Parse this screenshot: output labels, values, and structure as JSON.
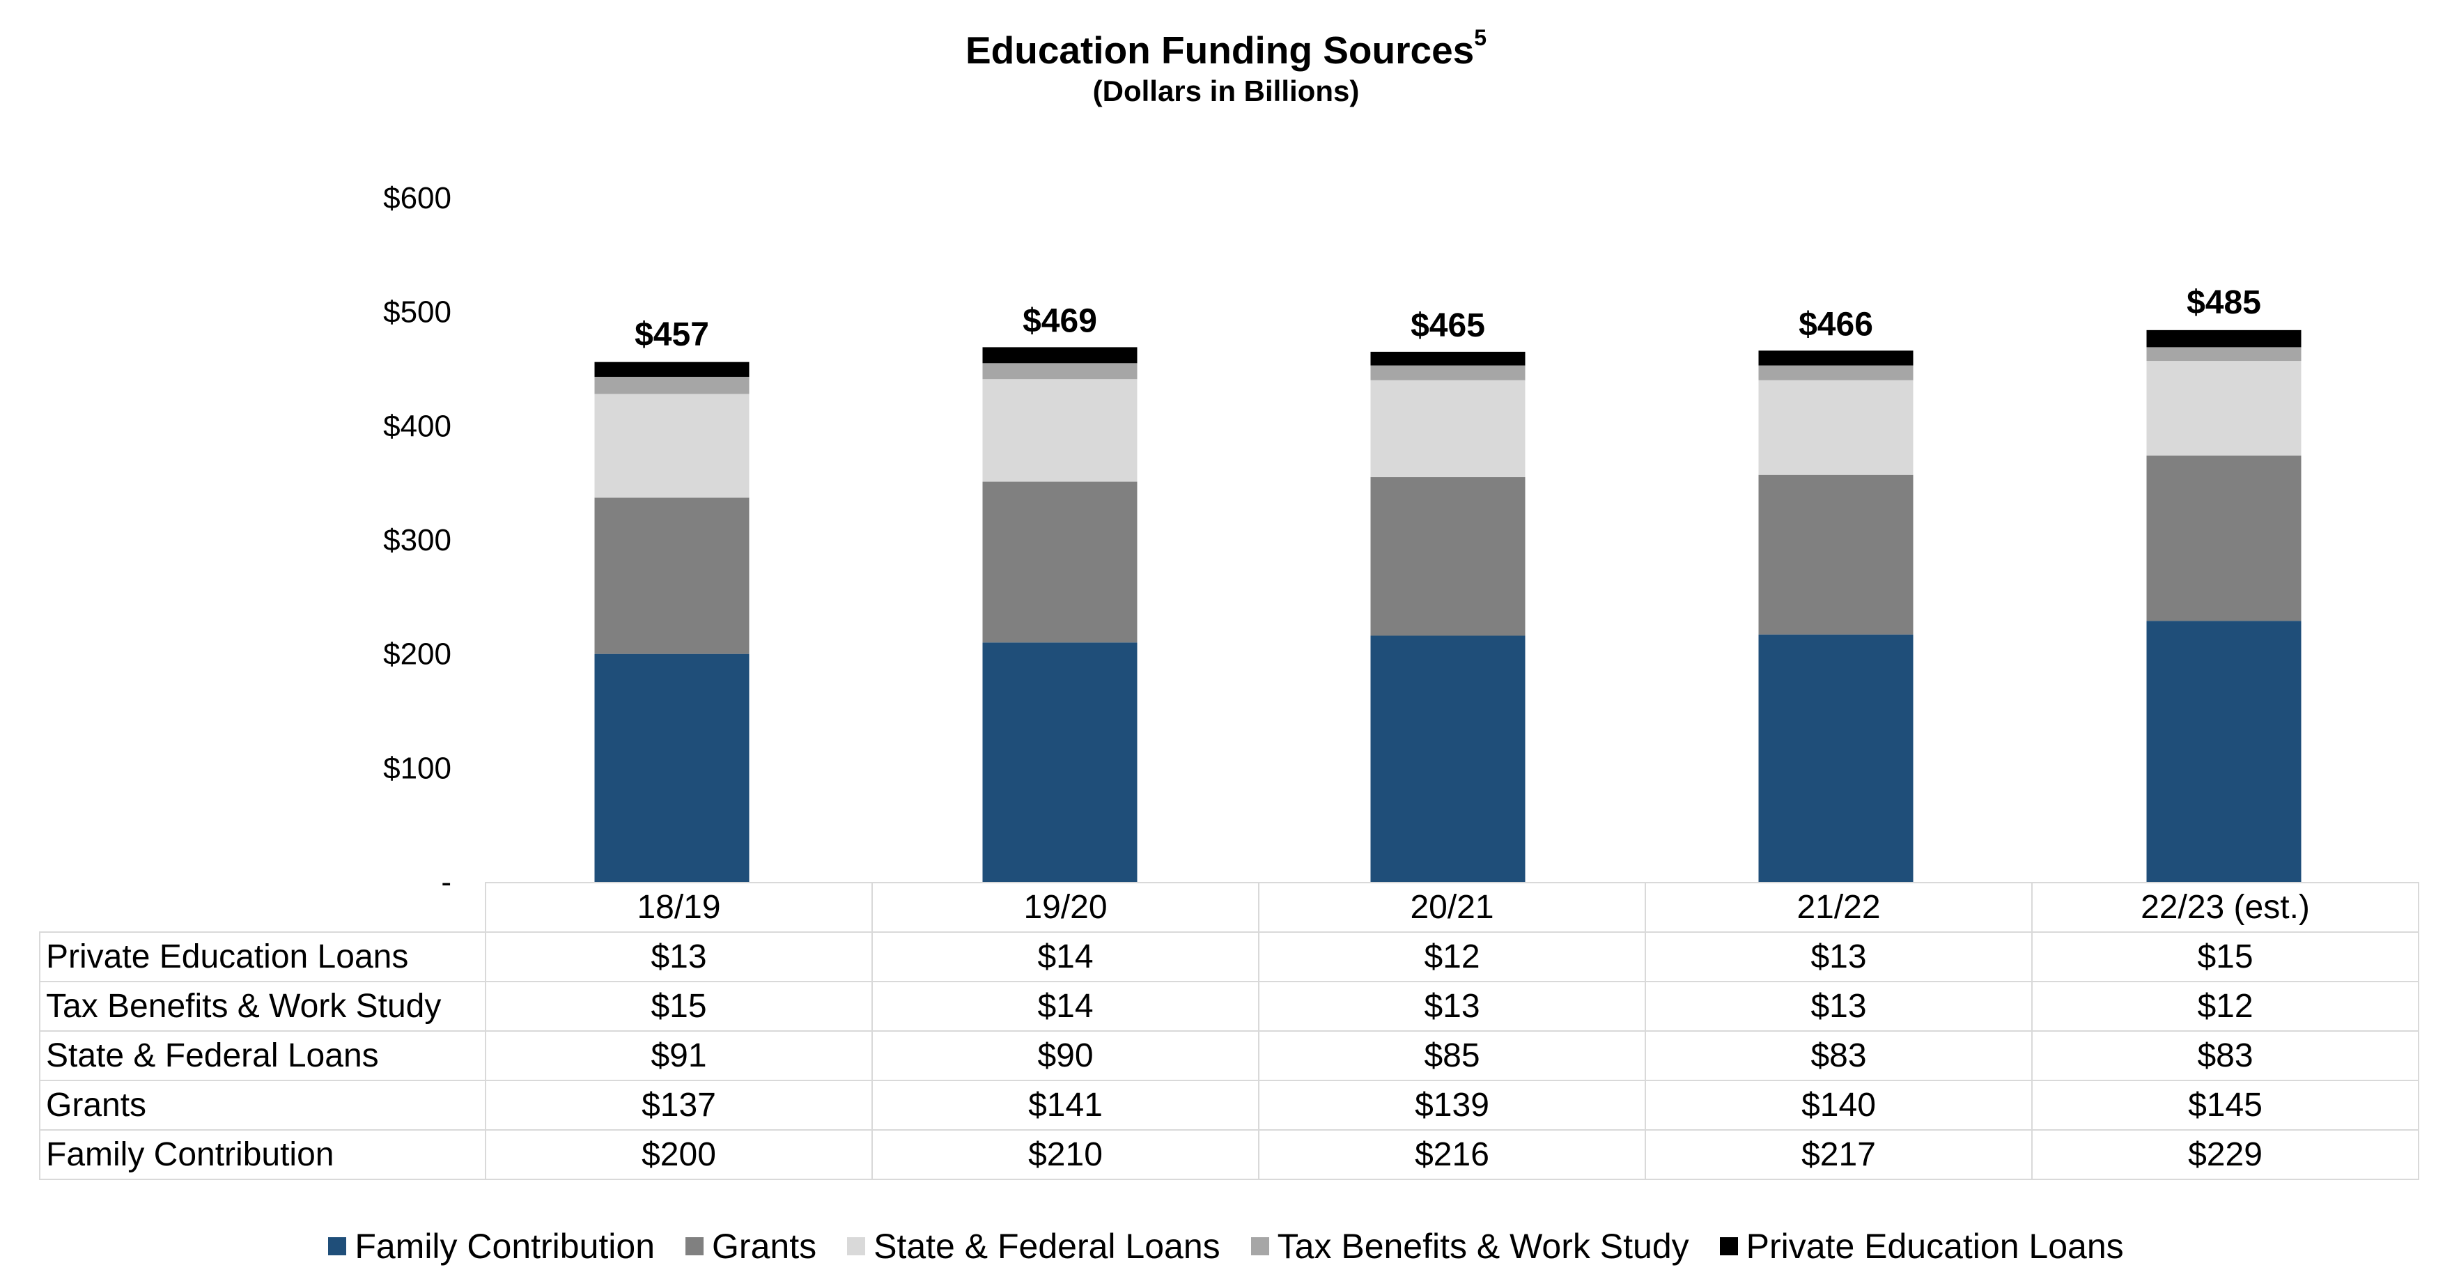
{
  "chart_data": {
    "type": "bar",
    "stacked": true,
    "title": "Education Funding Sources",
    "title_superscript": "5",
    "subtitle": "(Dollars in Billions)",
    "categories": [
      "18/19",
      "19/20",
      "20/21",
      "21/22",
      "22/23 (est.)"
    ],
    "ylim": [
      0,
      600
    ],
    "yticks": [
      0,
      100,
      200,
      300,
      400,
      500,
      600
    ],
    "ytick_labels": [
      "-",
      "$100",
      "$200",
      "$300",
      "$400",
      "$500",
      "$600"
    ],
    "series": [
      {
        "name": "Family Contribution",
        "color": "#1f4e79",
        "values": [
          200,
          210,
          216,
          217,
          229
        ],
        "labels": [
          "$200",
          "$210",
          "$216",
          "$217",
          "$229"
        ]
      },
      {
        "name": "Grants",
        "color": "#808080",
        "values": [
          137,
          141,
          139,
          140,
          145
        ],
        "labels": [
          "$137",
          "$141",
          "$139",
          "$140",
          "$145"
        ]
      },
      {
        "name": "State & Federal Loans",
        "color": "#d9d9d9",
        "values": [
          91,
          90,
          85,
          83,
          83
        ],
        "labels": [
          "$91",
          "$90",
          "$85",
          "$83",
          "$83"
        ]
      },
      {
        "name": "Tax Benefits & Work Study",
        "color": "#a6a6a6",
        "values": [
          15,
          14,
          13,
          13,
          12
        ],
        "labels": [
          "$15",
          "$14",
          "$13",
          "$13",
          "$12"
        ]
      },
      {
        "name": "Private Education Loans",
        "color": "#000000",
        "values": [
          13,
          14,
          12,
          13,
          15
        ],
        "labels": [
          "$13",
          "$14",
          "$12",
          "$13",
          "$15"
        ]
      }
    ],
    "totals": [
      457,
      469,
      465,
      466,
      485
    ],
    "total_labels": [
      "$457",
      "$469",
      "$465",
      "$466",
      "$485"
    ],
    "legend_position": "bottom",
    "grid": false,
    "table_row_order": [
      "Private Education Loans",
      "Tax Benefits & Work Study",
      "State & Federal Loans",
      "Grants",
      "Family Contribution"
    ]
  }
}
